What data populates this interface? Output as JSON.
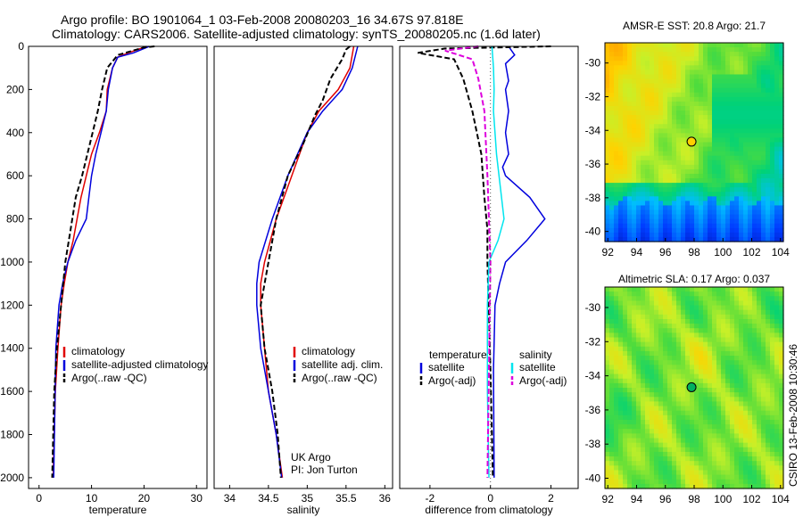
{
  "header": {
    "line1": "Argo profile: BO 1901064_1 03-Feb-2008 20080203_16 34.67S 97.818E",
    "line2": "Climatology: CARS2006. Satellite-adjusted climatology: synTS_20080205.nc (1.6d later)"
  },
  "side_label": "CSIRO 13-Feb-2008 10:30:46",
  "colors": {
    "red": "#e00000",
    "blue": "#0000dd",
    "black": "#000000",
    "cyan": "#00e5ee",
    "magenta": "#dd00dd"
  },
  "chart_data": [
    {
      "type": "line",
      "xlabel": "temperature",
      "xlim": [
        -2,
        32
      ],
      "ylim": [
        2050,
        0
      ],
      "xticks": [
        0,
        10,
        20,
        30
      ],
      "yticks": [
        0,
        200,
        400,
        600,
        800,
        1000,
        1200,
        1400,
        1600,
        1800,
        2000
      ],
      "ytick_labels": [
        "0",
        "200",
        "400",
        "600",
        "800",
        "1000",
        "1200",
        "1400",
        "1600",
        "1800",
        "2000"
      ],
      "legend": [
        "climatology",
        "satellite-adjusted climatology",
        "Argo(..raw -QC)"
      ],
      "series": [
        {
          "name": "climatology",
          "color": "red",
          "dash": "",
          "x": [
            20.5,
            17,
            15,
            14,
            13,
            12.8,
            11.5,
            10,
            9,
            8,
            6.5,
            5.5,
            4.8,
            4.2,
            3.6,
            3.1,
            2.7
          ],
          "y": [
            0,
            30,
            50,
            100,
            200,
            300,
            400,
            500,
            600,
            700,
            900,
            1000,
            1100,
            1200,
            1400,
            1600,
            2000
          ]
        },
        {
          "name": "satellite-adjusted climatology",
          "color": "blue",
          "dash": "",
          "x": [
            21,
            18,
            15,
            14,
            13.2,
            12.8,
            11.8,
            10.8,
            10,
            9.5,
            9,
            7,
            5.5,
            4.5,
            3.8,
            3.2,
            2.8
          ],
          "y": [
            0,
            30,
            50,
            100,
            200,
            300,
            400,
            500,
            600,
            700,
            800,
            900,
            1000,
            1100,
            1200,
            1400,
            2000
          ]
        },
        {
          "name": "Argo(..raw -QC)",
          "color": "black",
          "dash": "6,3",
          "x": [
            22,
            20,
            15,
            13,
            12,
            11.2,
            10.2,
            9.2,
            8.2,
            7,
            6,
            5,
            4.2,
            3.4,
            2.9,
            2.5
          ],
          "y": [
            0,
            5,
            40,
            100,
            200,
            300,
            400,
            500,
            600,
            700,
            850,
            1000,
            1200,
            1400,
            1600,
            2000
          ]
        }
      ]
    },
    {
      "type": "line",
      "xlabel": "salinity",
      "xlim": [
        33.8,
        36.1
      ],
      "ylim": [
        2050,
        0
      ],
      "xticks": [
        34,
        34.5,
        35,
        35.5,
        36
      ],
      "legend": [
        "climatology",
        "satellite adj. clim.",
        "Argo(..raw -QC)"
      ],
      "annotations": [
        "UK Argo",
        "PI: Jon Turton"
      ],
      "series": [
        {
          "name": "climatology",
          "color": "red",
          "dash": "",
          "x": [
            35.6,
            35.55,
            35.4,
            35.15,
            35,
            34.8,
            34.6,
            34.45,
            34.4,
            34.4,
            34.45,
            34.5,
            34.6,
            34.68
          ],
          "y": [
            0,
            100,
            200,
            300,
            400,
            600,
            800,
            1000,
            1100,
            1200,
            1400,
            1600,
            1800,
            2000
          ]
        },
        {
          "name": "satellite adj. clim.",
          "color": "blue",
          "dash": "",
          "x": [
            35.65,
            35.58,
            35.45,
            35.2,
            35,
            34.75,
            34.55,
            34.38,
            34.35,
            34.35,
            34.4,
            34.5,
            34.6,
            34.67
          ],
          "y": [
            0,
            100,
            200,
            300,
            400,
            600,
            800,
            1000,
            1100,
            1200,
            1400,
            1600,
            1800,
            2000
          ]
        },
        {
          "name": "Argo(..raw -QC)",
          "color": "black",
          "dash": "6,3",
          "x": [
            35.55,
            35.5,
            35.45,
            35.3,
            35.2,
            35.1,
            34.95,
            34.75,
            34.6,
            34.5,
            34.4,
            34.45,
            34.55,
            34.62,
            34.66
          ],
          "y": [
            0,
            15,
            60,
            150,
            250,
            320,
            450,
            600,
            800,
            1000,
            1200,
            1400,
            1600,
            1800,
            2000
          ]
        }
      ]
    },
    {
      "type": "line",
      "xlabel": "difference from climatology",
      "xlim": [
        -3,
        2.9
      ],
      "ylim": [
        2050,
        0
      ],
      "xticks": [
        -2,
        0,
        2
      ],
      "legend_temperature_heading": "temperature",
      "legend_salinity_heading": "salinity",
      "legend": [
        "satellite",
        "Argo(-adj)",
        "satellite",
        "Argo(-adj)"
      ],
      "series": [
        {
          "name": "satellite",
          "group": "temperature",
          "color": "blue",
          "dash": "",
          "x": [
            0.6,
            0.8,
            0.5,
            0.6,
            0.5,
            0.6,
            0.5,
            0.6,
            0.4,
            0.5,
            1.3,
            1.8,
            1.2,
            0.5,
            0.3,
            0.15,
            0.1,
            0.12
          ],
          "y": [
            0,
            40,
            80,
            160,
            200,
            300,
            400,
            500,
            560,
            600,
            700,
            800,
            900,
            1000,
            1100,
            1200,
            1500,
            2000
          ]
        },
        {
          "name": "Argo(-adj)",
          "group": "temperature",
          "color": "black",
          "dash": "6,3",
          "x": [
            2,
            -1.5,
            -2.4,
            -1.2,
            -0.9,
            -0.6,
            -0.3,
            -0.2,
            -0.1,
            -0.1,
            0,
            0.08
          ],
          "y": [
            0,
            10,
            30,
            60,
            150,
            300,
            500,
            700,
            850,
            1000,
            1500,
            2000
          ]
        },
        {
          "name": "satellite",
          "group": "salinity",
          "color": "cyan",
          "dash": "",
          "x": [
            0.05,
            0.1,
            0.12,
            0.1,
            0.2,
            0.45,
            0.25,
            -0.05,
            -0.1,
            -0.1,
            -0.05
          ],
          "y": [
            0,
            100,
            200,
            300,
            500,
            800,
            900,
            1000,
            1200,
            1600,
            2000
          ]
        },
        {
          "name": "Argo(-adj)",
          "group": "salinity",
          "color": "magenta",
          "dash": "6,3",
          "x": [
            -0.4,
            -1.5,
            -0.6,
            -0.4,
            -0.2,
            -0.1,
            0,
            -0.05,
            -0.1
          ],
          "y": [
            0,
            20,
            60,
            150,
            300,
            600,
            1000,
            1500,
            2000
          ]
        }
      ]
    },
    {
      "type": "heatmap",
      "title": "AMSR-E SST: 20.8 Argo: 21.7",
      "xlim": [
        91.8,
        104.2
      ],
      "ylim": [
        -40.6,
        -28.8
      ],
      "xticks": [
        92,
        94,
        96,
        98,
        100,
        102,
        104
      ],
      "yticks": [
        -30,
        -32,
        -34,
        -36,
        -38,
        -40
      ],
      "marker": {
        "x": 97.818,
        "y": -34.67
      }
    },
    {
      "type": "heatmap",
      "title": "Altimetric SLA: 0.17 Argo: 0.037",
      "xlim": [
        91.8,
        104.2
      ],
      "ylim": [
        -40.6,
        -28.8
      ],
      "xticks": [
        92,
        94,
        96,
        98,
        100,
        102,
        104
      ],
      "yticks": [
        -30,
        -32,
        -34,
        -36,
        -38,
        -40
      ],
      "marker": {
        "x": 97.818,
        "y": -34.67
      }
    }
  ]
}
